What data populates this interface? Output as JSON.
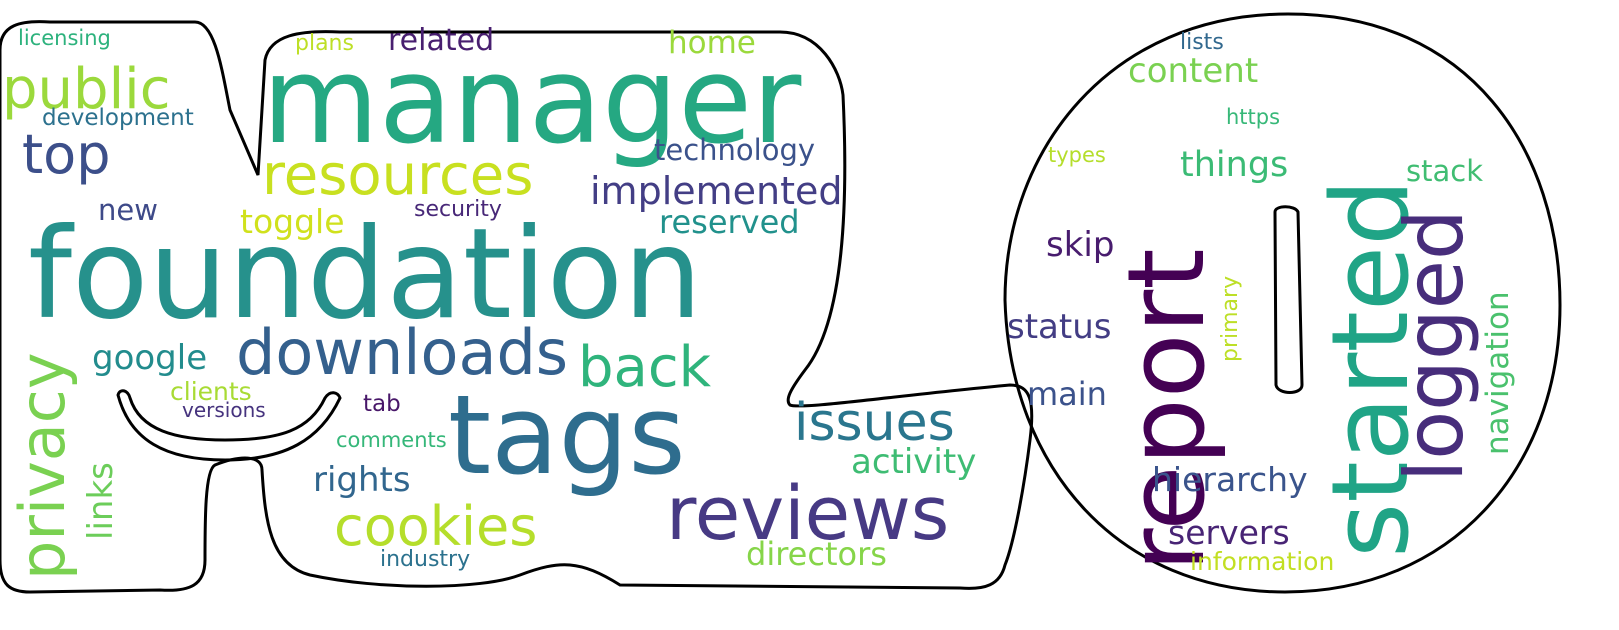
{
  "words": [
    {
      "text": "manager",
      "color": "#25a882",
      "vertical": false
    },
    {
      "text": "foundation",
      "color": "#26918c",
      "vertical": false
    },
    {
      "text": "tags",
      "color": "#2e6d8e",
      "vertical": false
    },
    {
      "text": "reviews",
      "color": "#473a84",
      "vertical": false
    },
    {
      "text": "downloads",
      "color": "#34608d",
      "vertical": false
    },
    {
      "text": "resources",
      "color": "#c8e020",
      "vertical": false
    },
    {
      "text": "public",
      "color": "#9bd93c",
      "vertical": false
    },
    {
      "text": "top",
      "color": "#3c4f8a",
      "vertical": false
    },
    {
      "text": "back",
      "color": "#2fb47c",
      "vertical": false
    },
    {
      "text": "cookies",
      "color": "#b5de2b",
      "vertical": false
    },
    {
      "text": "issues",
      "color": "#2a768e",
      "vertical": false
    },
    {
      "text": "implemented",
      "color": "#433e85",
      "vertical": false
    },
    {
      "text": "technology",
      "color": "#3b528b",
      "vertical": false
    },
    {
      "text": "reserved",
      "color": "#21918c",
      "vertical": false
    },
    {
      "text": "activity",
      "color": "#3ebc73",
      "vertical": false
    },
    {
      "text": "directors",
      "color": "#86d549",
      "vertical": false
    },
    {
      "text": "rights",
      "color": "#31668e",
      "vertical": false
    },
    {
      "text": "google",
      "color": "#228c8d",
      "vertical": false
    },
    {
      "text": "toggle",
      "color": "#d0e11c",
      "vertical": false
    },
    {
      "text": "related",
      "color": "#481f70",
      "vertical": false
    },
    {
      "text": "home",
      "color": "#9bd93c",
      "vertical": false
    },
    {
      "text": "plans",
      "color": "#bddf26",
      "vertical": false
    },
    {
      "text": "new",
      "color": "#3e4a89",
      "vertical": false
    },
    {
      "text": "security",
      "color": "#482878",
      "vertical": false
    },
    {
      "text": "development",
      "color": "#2c718e",
      "vertical": false
    },
    {
      "text": "licensing",
      "color": "#2db27d",
      "vertical": false
    },
    {
      "text": "clients",
      "color": "#a8db34",
      "vertical": false
    },
    {
      "text": "versions",
      "color": "#46337e",
      "vertical": false
    },
    {
      "text": "tab",
      "color": "#481769",
      "vertical": false
    },
    {
      "text": "comments",
      "color": "#35b779",
      "vertical": false
    },
    {
      "text": "industry",
      "color": "#2c728e",
      "vertical": false
    },
    {
      "text": "privacy",
      "color": "#7ad151",
      "vertical": true
    },
    {
      "text": "links",
      "color": "#6ccd5a",
      "vertical": true
    },
    {
      "text": "report",
      "color": "#440154",
      "vertical": true
    },
    {
      "text": "started",
      "color": "#20a486",
      "vertical": true
    },
    {
      "text": "logged",
      "color": "#472d7b",
      "vertical": true
    },
    {
      "text": "navigation",
      "color": "#4ac16d",
      "vertical": true
    },
    {
      "text": "primary",
      "color": "#bddf26",
      "vertical": true
    },
    {
      "text": "lists",
      "color": "#31688e",
      "vertical": false
    },
    {
      "text": "content",
      "color": "#7ad151",
      "vertical": false
    },
    {
      "text": "https",
      "color": "#37b878",
      "vertical": false
    },
    {
      "text": "types",
      "color": "#b5de2b",
      "vertical": false
    },
    {
      "text": "things",
      "color": "#3bbb75",
      "vertical": false
    },
    {
      "text": "stack",
      "color": "#40bd72",
      "vertical": false
    },
    {
      "text": "skip",
      "color": "#481c6e",
      "vertical": false
    },
    {
      "text": "status",
      "color": "#433d84",
      "vertical": false
    },
    {
      "text": "main",
      "color": "#3b528b",
      "vertical": false
    },
    {
      "text": "hierarchy",
      "color": "#3a548c",
      "vertical": false
    },
    {
      "text": "servers",
      "color": "#482475",
      "vertical": false
    },
    {
      "text": "information",
      "color": "#c2df23",
      "vertical": false
    }
  ],
  "outline_color": "#000000",
  "background": "#ffffff"
}
